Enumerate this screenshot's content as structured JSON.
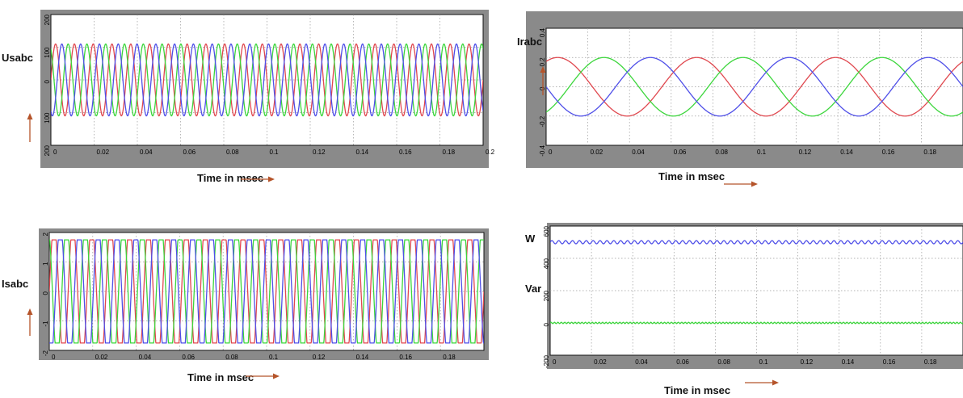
{
  "colors": {
    "phase_a": "#e0484f",
    "phase_b": "#3cd63c",
    "phase_c": "#4f4fe8",
    "arrow": "#b5542a"
  },
  "charts": [
    {
      "type": "line",
      "ylabel": "Usabc",
      "xlabel": "Time in msec",
      "xlim": [
        0,
        0.2
      ],
      "ylim": [
        -200,
        200
      ],
      "x_ticks": [
        "0",
        "0.02",
        "0.04",
        "0.06",
        "0.08",
        "0.1",
        "0.12",
        "0.14",
        "0.16",
        "0.18",
        "0.2"
      ],
      "y_ticks": [
        "200",
        "100",
        "0",
        "100",
        "200"
      ],
      "waveform": {
        "kind": "sine",
        "amplitude": 110,
        "frequency_hz": 115,
        "phases_deg": [
          0,
          120,
          240
        ],
        "offset": 0,
        "ripple": 0
      },
      "series": [
        {
          "color_key": "phase_a"
        },
        {
          "color_key": "phase_b"
        },
        {
          "color_key": "phase_c"
        }
      ]
    },
    {
      "type": "line",
      "ylabel": "Irabc",
      "xlabel": "Time in msec",
      "xlim": [
        0,
        0.2
      ],
      "ylim": [
        -0.4,
        0.4
      ],
      "x_ticks": [
        "0",
        "0.02",
        "0.04",
        "0.06",
        "0.08",
        "0.1",
        "0.12",
        "0.14",
        "0.16",
        "0.18"
      ],
      "y_ticks": [
        "0.4",
        "0.2",
        "0",
        "-0.2",
        "-0.4"
      ],
      "waveform": {
        "kind": "sine",
        "amplitude": 0.2,
        "frequency_hz": 15,
        "phases_deg": [
          60,
          -60,
          180
        ],
        "offset": 0,
        "ripple": 0
      },
      "series": [
        {
          "color_key": "phase_a"
        },
        {
          "color_key": "phase_b"
        },
        {
          "color_key": "phase_c"
        }
      ]
    },
    {
      "type": "line",
      "ylabel": "Isabc",
      "xlabel": "Time in msec",
      "xlim": [
        0,
        0.2
      ],
      "ylim": [
        -2,
        2
      ],
      "x_ticks": [
        "0",
        "0.02",
        "0.04",
        "0.06",
        "0.08",
        "0.1",
        "0.12",
        "0.14",
        "0.16",
        "0.18"
      ],
      "y_ticks": [
        "2",
        "1",
        "0",
        "-1",
        "-2"
      ],
      "waveform": {
        "kind": "clipped-sine",
        "amplitude": 2.3,
        "clip": 1.75,
        "frequency_hz": 115,
        "phases_deg": [
          0,
          120,
          240
        ],
        "offset": 0,
        "ripple": 0
      },
      "series": [
        {
          "color_key": "phase_a"
        },
        {
          "color_key": "phase_b"
        },
        {
          "color_key": "phase_c"
        }
      ]
    },
    {
      "type": "line",
      "ylabel": "W",
      "ylabel2": "Var",
      "xlabel": "Time in msec",
      "xlim": [
        0,
        0.2
      ],
      "ylim": [
        -200,
        600
      ],
      "x_ticks": [
        "0",
        "0.02",
        "0.04",
        "0.06",
        "0.08",
        "0.1",
        "0.12",
        "0.14",
        "0.16",
        "0.18"
      ],
      "y_ticks": [
        "600",
        "400",
        "200",
        "0",
        "-200"
      ],
      "series": [
        {
          "color_key": "phase_c",
          "kind": "ripple",
          "level": 500,
          "ripple": 10,
          "frequency_hz": 300
        },
        {
          "color_key": "phase_b",
          "kind": "ripple",
          "level": 0,
          "ripple": 4,
          "frequency_hz": 600
        }
      ]
    }
  ]
}
